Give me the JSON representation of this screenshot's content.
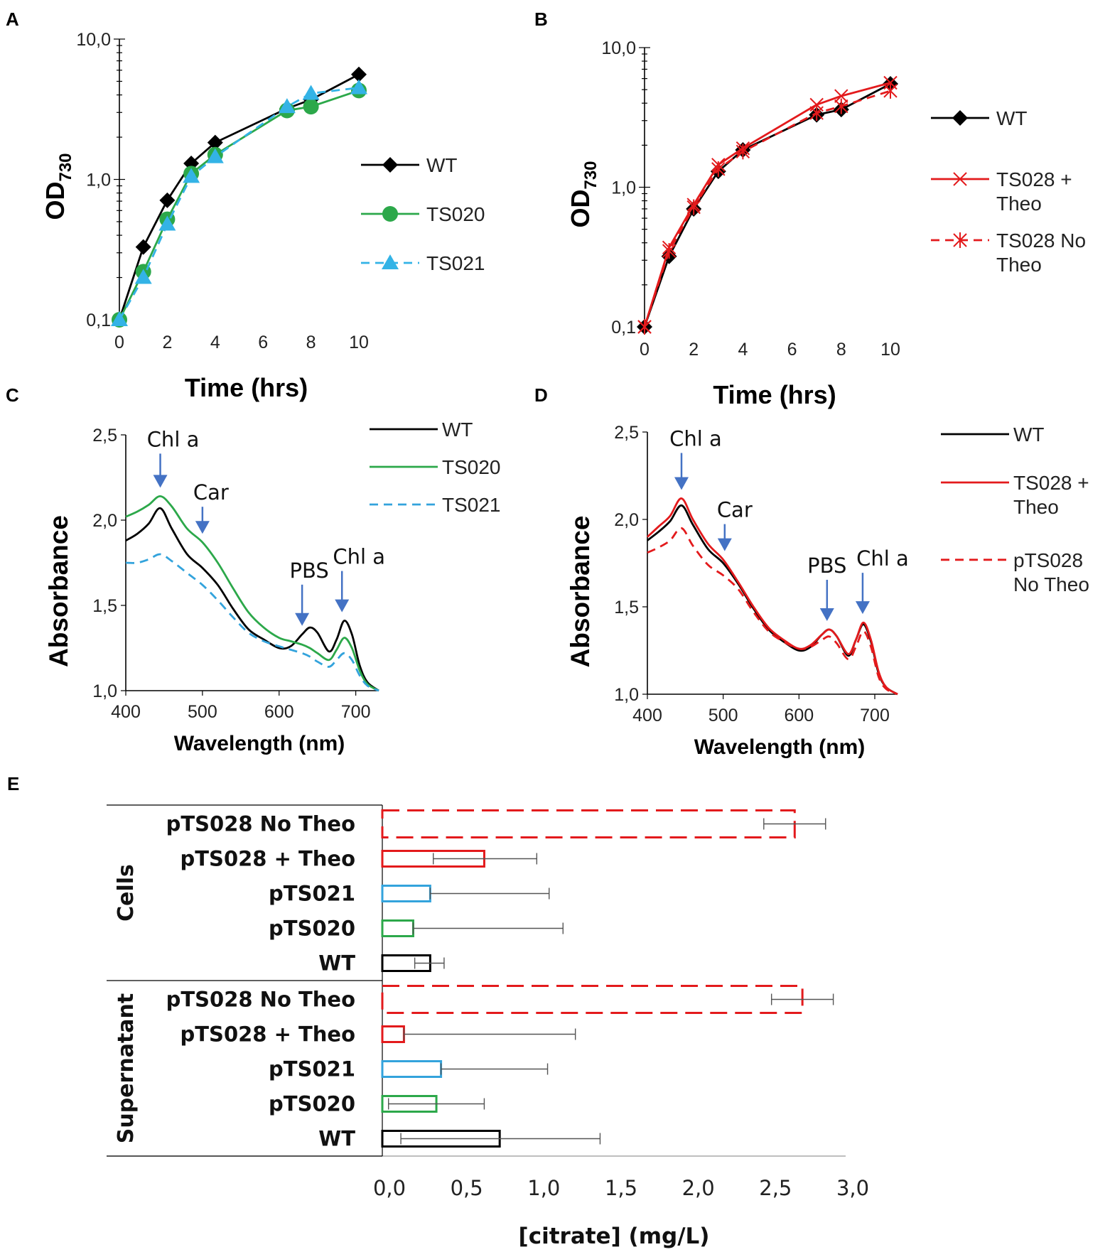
{
  "chart_data": [
    {
      "panel": "A",
      "type": "line",
      "yscale": "log",
      "xlabel": "Time (hrs)",
      "ylabel": "OD",
      "ylabel_sub": "730",
      "xlim": [
        0,
        10
      ],
      "ylim": [
        0.1,
        10
      ],
      "xticks": [
        0,
        2,
        4,
        6,
        8,
        10
      ],
      "xtick_labels": [
        "0",
        "2",
        "4",
        "6",
        "8",
        "10"
      ],
      "yticks": [
        0.1,
        1,
        10
      ],
      "ytick_labels": [
        "0,1",
        "1,0",
        "10,0"
      ],
      "legend_position": "right",
      "series": [
        {
          "name": "WT",
          "color": "#000000",
          "marker": "diamond",
          "dash": "solid",
          "x": [
            0,
            1,
            2,
            3,
            4,
            7,
            8,
            10
          ],
          "y": [
            0.1,
            0.33,
            0.71,
            1.3,
            1.83,
            3.2,
            3.7,
            5.6
          ]
        },
        {
          "name": "TS020",
          "color": "#2ca84a",
          "marker": "circle",
          "dash": "solid",
          "x": [
            0,
            1,
            2,
            3,
            4,
            7,
            8,
            10
          ],
          "y": [
            0.1,
            0.22,
            0.52,
            1.1,
            1.5,
            3.1,
            3.3,
            4.3
          ]
        },
        {
          "name": "TS021",
          "color": "#33b3e6",
          "marker": "triangle",
          "dash": "dashed",
          "x": [
            0,
            1,
            2,
            3,
            4,
            7,
            8,
            10
          ],
          "y": [
            0.1,
            0.2,
            0.48,
            1.05,
            1.45,
            3.3,
            4.1,
            4.5
          ]
        }
      ]
    },
    {
      "panel": "B",
      "type": "line",
      "yscale": "log",
      "xlabel": "Time (hrs)",
      "ylabel": "OD",
      "ylabel_sub": "730",
      "xlim": [
        0,
        10
      ],
      "ylim": [
        0.1,
        10
      ],
      "xticks": [
        0,
        2,
        4,
        6,
        8,
        10
      ],
      "xtick_labels": [
        "0",
        "2",
        "4",
        "6",
        "8",
        "10"
      ],
      "yticks": [
        0.1,
        1,
        10
      ],
      "ytick_labels": [
        "0,1",
        "1,0",
        "10,0"
      ],
      "legend_position": "right",
      "series": [
        {
          "name": "WT",
          "label_lines": [
            "WT"
          ],
          "color": "#000000",
          "marker": "diamond",
          "dash": "solid",
          "x": [
            0,
            1,
            2,
            3,
            4,
            7,
            8,
            10
          ],
          "y": [
            0.1,
            0.32,
            0.7,
            1.3,
            1.85,
            3.3,
            3.6,
            5.5
          ]
        },
        {
          "name": "TS028 + Theo",
          "label_lines": [
            "TS028 +",
            "Theo"
          ],
          "color": "#e31a1c",
          "marker": "x",
          "dash": "solid",
          "x": [
            0,
            1,
            2,
            3,
            4,
            7,
            8,
            10
          ],
          "y": [
            0.1,
            0.37,
            0.75,
            1.45,
            1.9,
            3.9,
            4.5,
            5.6
          ]
        },
        {
          "name": "TS028 No Theo",
          "label_lines": [
            "TS028 No",
            "Theo"
          ],
          "color": "#e31a1c",
          "marker": "star",
          "dash": "dashed",
          "x": [
            0,
            1,
            2,
            3,
            4,
            7,
            8,
            10
          ],
          "y": [
            0.1,
            0.35,
            0.72,
            1.35,
            1.8,
            3.4,
            3.8,
            4.9
          ]
        }
      ]
    },
    {
      "panel": "C",
      "type": "line",
      "xlabel": "Wavelength (nm)",
      "ylabel": "Absorbance",
      "xlim": [
        400,
        730
      ],
      "ylim": [
        1.0,
        2.5
      ],
      "xticks": [
        400,
        500,
        600,
        700
      ],
      "xtick_labels": [
        "400",
        "500",
        "600",
        "700"
      ],
      "yticks": [
        1.0,
        1.5,
        2.0,
        2.5
      ],
      "ytick_labels": [
        "1,0",
        "1,5",
        "2,0",
        "2,5"
      ],
      "legend_position": "top-right",
      "annotations": [
        {
          "text": "Chl a",
          "x": 445
        },
        {
          "text": "Car",
          "x": 500
        },
        {
          "text": "PBS",
          "x": 630
        },
        {
          "text": "Chl a",
          "x": 682
        }
      ],
      "series": [
        {
          "name": "WT",
          "color": "#000000",
          "dash": "solid",
          "x": [
            400,
            415,
            430,
            445,
            460,
            480,
            500,
            520,
            540,
            560,
            580,
            600,
            615,
            630,
            640,
            650,
            665,
            675,
            685,
            695,
            705,
            715,
            730
          ],
          "y": [
            1.88,
            1.92,
            1.98,
            2.07,
            1.95,
            1.8,
            1.72,
            1.62,
            1.48,
            1.36,
            1.3,
            1.25,
            1.26,
            1.33,
            1.37,
            1.34,
            1.23,
            1.3,
            1.41,
            1.33,
            1.15,
            1.05,
            1.0
          ]
        },
        {
          "name": "TS020",
          "color": "#2ca84a",
          "dash": "solid",
          "x": [
            400,
            415,
            430,
            445,
            460,
            480,
            500,
            520,
            540,
            560,
            580,
            600,
            615,
            630,
            640,
            650,
            665,
            675,
            685,
            695,
            705,
            715,
            730
          ],
          "y": [
            2.02,
            2.05,
            2.09,
            2.14,
            2.08,
            1.95,
            1.87,
            1.75,
            1.6,
            1.46,
            1.37,
            1.31,
            1.29,
            1.27,
            1.25,
            1.22,
            1.18,
            1.24,
            1.31,
            1.25,
            1.12,
            1.04,
            1.0
          ]
        },
        {
          "name": "TS021",
          "color": "#33a3dc",
          "dash": "dashed",
          "x": [
            400,
            415,
            430,
            445,
            460,
            480,
            500,
            520,
            540,
            560,
            580,
            600,
            615,
            630,
            640,
            650,
            665,
            675,
            685,
            695,
            705,
            715,
            730
          ],
          "y": [
            1.75,
            1.75,
            1.77,
            1.8,
            1.76,
            1.69,
            1.62,
            1.53,
            1.43,
            1.34,
            1.29,
            1.26,
            1.24,
            1.22,
            1.2,
            1.17,
            1.14,
            1.18,
            1.22,
            1.18,
            1.09,
            1.03,
            1.0
          ]
        }
      ]
    },
    {
      "panel": "D",
      "type": "line",
      "xlabel": "Wavelength (nm)",
      "ylabel": "Absorbance",
      "xlim": [
        400,
        730
      ],
      "ylim": [
        1.0,
        2.5
      ],
      "xticks": [
        400,
        500,
        600,
        700
      ],
      "xtick_labels": [
        "400",
        "500",
        "600",
        "700"
      ],
      "yticks": [
        1.0,
        1.5,
        2.0,
        2.5
      ],
      "ytick_labels": [
        "1,0",
        "1,5",
        "2,0",
        "2,5"
      ],
      "legend_position": "top-right",
      "annotations": [
        {
          "text": "Chl a",
          "x": 445
        },
        {
          "text": "Car",
          "x": 502
        },
        {
          "text": "PBS",
          "x": 637
        },
        {
          "text": "Chl a",
          "x": 684
        }
      ],
      "series": [
        {
          "name": "WT",
          "label_lines": [
            "WT"
          ],
          "color": "#000000",
          "dash": "solid",
          "x": [
            400,
            415,
            430,
            445,
            460,
            480,
            500,
            520,
            540,
            560,
            580,
            600,
            615,
            630,
            640,
            650,
            665,
            675,
            685,
            695,
            705,
            715,
            730
          ],
          "y": [
            1.88,
            1.93,
            1.99,
            2.08,
            1.97,
            1.83,
            1.75,
            1.63,
            1.49,
            1.37,
            1.3,
            1.25,
            1.27,
            1.34,
            1.37,
            1.33,
            1.22,
            1.31,
            1.4,
            1.3,
            1.12,
            1.04,
            1.0
          ]
        },
        {
          "name": "TS028 + Theo",
          "label_lines": [
            "TS028 +",
            "Theo"
          ],
          "color": "#e31a1c",
          "dash": "solid",
          "x": [
            400,
            415,
            430,
            445,
            460,
            480,
            500,
            520,
            540,
            560,
            580,
            600,
            615,
            630,
            640,
            650,
            665,
            675,
            685,
            695,
            705,
            715,
            730
          ],
          "y": [
            1.9,
            1.96,
            2.02,
            2.12,
            2.0,
            1.86,
            1.77,
            1.64,
            1.5,
            1.38,
            1.31,
            1.26,
            1.28,
            1.34,
            1.37,
            1.33,
            1.23,
            1.31,
            1.41,
            1.31,
            1.13,
            1.04,
            1.0
          ]
        },
        {
          "name": "pTS028 No Theo",
          "label_lines": [
            "pTS028",
            "No Theo"
          ],
          "color": "#e31a1c",
          "dash": "dashed",
          "x": [
            400,
            415,
            430,
            445,
            460,
            480,
            500,
            520,
            540,
            560,
            580,
            600,
            615,
            630,
            640,
            650,
            665,
            675,
            685,
            695,
            705,
            715,
            730
          ],
          "y": [
            1.81,
            1.84,
            1.88,
            1.95,
            1.85,
            1.74,
            1.68,
            1.6,
            1.47,
            1.36,
            1.3,
            1.26,
            1.27,
            1.31,
            1.33,
            1.29,
            1.2,
            1.27,
            1.36,
            1.27,
            1.1,
            1.03,
            1.0
          ]
        }
      ]
    },
    {
      "panel": "E",
      "type": "bar",
      "orientation": "horizontal",
      "xlabel": "[citrate] (mg/L)",
      "xlim": [
        0,
        3
      ],
      "xticks": [
        0,
        0.5,
        1.0,
        1.5,
        2.0,
        2.5,
        3.0
      ],
      "xtick_labels": [
        "0,0",
        "0,5",
        "1,0",
        "1,5",
        "2,0",
        "2,5",
        "3,0"
      ],
      "groups": [
        {
          "name": "Cells",
          "bars": [
            {
              "label": "pTS028 No Theo",
              "value": 2.67,
              "error_low": 2.47,
              "error_high": 2.87,
              "color": "#e31a1c",
              "dash": "dashed"
            },
            {
              "label": "pTS028 + Theo",
              "value": 0.66,
              "error_low": 0.33,
              "error_high": 1.0,
              "color": "#e31a1c",
              "dash": "solid"
            },
            {
              "label": "pTS021",
              "value": 0.31,
              "error_low": 0.31,
              "error_high": 1.08,
              "color": "#33a3dc",
              "dash": "solid"
            },
            {
              "label": "pTS020",
              "value": 0.2,
              "error_low": 0.2,
              "error_high": 1.17,
              "color": "#2ca84a",
              "dash": "solid"
            },
            {
              "label": "WT",
              "value": 0.31,
              "error_low": 0.21,
              "error_high": 0.4,
              "color": "#000000",
              "dash": "solid"
            }
          ]
        },
        {
          "name": "Supernatant",
          "bars": [
            {
              "label": "pTS028 No Theo",
              "value": 2.72,
              "error_low": 2.52,
              "error_high": 2.92,
              "color": "#e31a1c",
              "dash": "dashed"
            },
            {
              "label": "pTS028 + Theo",
              "value": 0.14,
              "error_low": 0.14,
              "error_high": 1.25,
              "color": "#e31a1c",
              "dash": "solid"
            },
            {
              "label": "pTS021",
              "value": 0.38,
              "error_low": 0.38,
              "error_high": 1.07,
              "color": "#33a3dc",
              "dash": "solid"
            },
            {
              "label": "pTS020",
              "value": 0.35,
              "error_low": 0.04,
              "error_high": 0.66,
              "color": "#2ca84a",
              "dash": "solid"
            },
            {
              "label": "WT",
              "value": 0.76,
              "error_low": 0.12,
              "error_high": 1.41,
              "color": "#000000",
              "dash": "solid"
            }
          ]
        }
      ]
    }
  ]
}
